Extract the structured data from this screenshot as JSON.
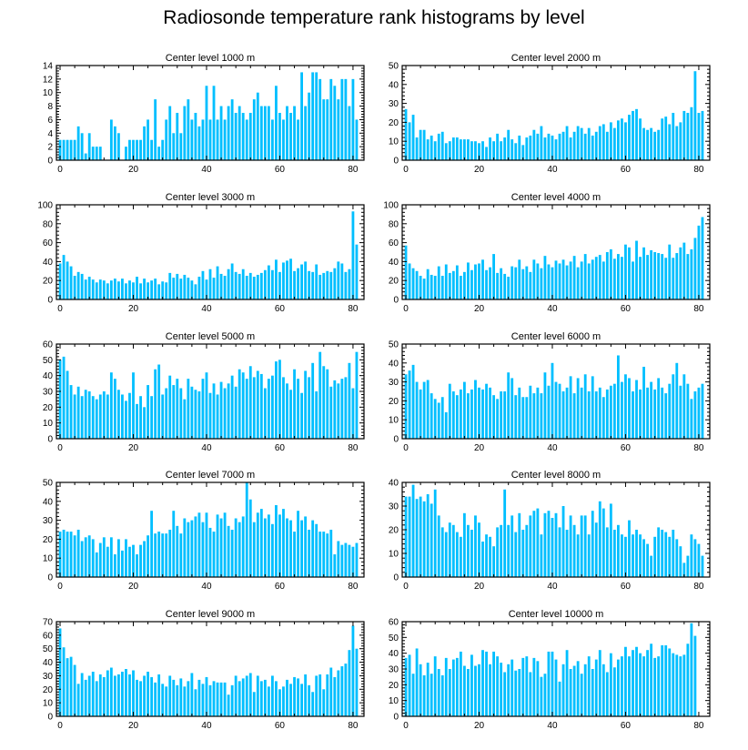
{
  "title": "Radiosonde temperature rank histograms by level",
  "chart_data": [
    {
      "type": "bar",
      "title": "Center level 1000 m",
      "xlim": [
        -1,
        83
      ],
      "ylim": [
        0,
        14
      ],
      "xticks": [
        0,
        20,
        40,
        60,
        80
      ],
      "yticks": [
        0,
        2,
        4,
        6,
        8,
        10,
        12,
        14
      ],
      "values": [
        3,
        3,
        3,
        3,
        3,
        5,
        4,
        1,
        4,
        2,
        2,
        2,
        0,
        0,
        6,
        5,
        4,
        0,
        2,
        3,
        3,
        3,
        3,
        5,
        6,
        3,
        9,
        2,
        3,
        6,
        8,
        4,
        7,
        4,
        8,
        9,
        6,
        7,
        5,
        6,
        11,
        6,
        11,
        6,
        8,
        6,
        8,
        9,
        7,
        8,
        7,
        6,
        7,
        9,
        10,
        8,
        8,
        8,
        6,
        11,
        7,
        6,
        8,
        7,
        8,
        6,
        13,
        8,
        10,
        13,
        13,
        12,
        9,
        9,
        12,
        11,
        9,
        12,
        12,
        8,
        12,
        6
      ]
    },
    {
      "type": "bar",
      "title": "Center level 2000 m",
      "xlim": [
        -1,
        83
      ],
      "ylim": [
        0,
        50
      ],
      "xticks": [
        0,
        20,
        40,
        60,
        80
      ],
      "yticks": [
        0,
        10,
        20,
        30,
        40,
        50
      ],
      "values": [
        27,
        20,
        24,
        12,
        16,
        16,
        11,
        13,
        10,
        14,
        15,
        9,
        10,
        12,
        12,
        11,
        11,
        11,
        10,
        10,
        9,
        10,
        7,
        12,
        10,
        14,
        10,
        12,
        16,
        11,
        9,
        13,
        8,
        12,
        13,
        16,
        14,
        18,
        12,
        14,
        13,
        11,
        14,
        15,
        18,
        12,
        15,
        18,
        17,
        14,
        17,
        13,
        15,
        18,
        19,
        15,
        20,
        17,
        21,
        22,
        20,
        24,
        26,
        27,
        22,
        17,
        16,
        17,
        15,
        16,
        22,
        23,
        19,
        25,
        18,
        20,
        26,
        25,
        28,
        47,
        25,
        26
      ]
    },
    {
      "type": "bar",
      "title": "Center level 3000 m",
      "xlim": [
        -1,
        83
      ],
      "ylim": [
        0,
        100
      ],
      "xticks": [
        0,
        20,
        40,
        60,
        80
      ],
      "yticks": [
        0,
        20,
        40,
        60,
        80,
        100
      ],
      "values": [
        38,
        47,
        40,
        35,
        25,
        29,
        27,
        21,
        24,
        21,
        18,
        21,
        20,
        17,
        20,
        22,
        19,
        22,
        17,
        20,
        18,
        24,
        17,
        22,
        18,
        20,
        22,
        16,
        19,
        18,
        28,
        23,
        27,
        22,
        26,
        23,
        20,
        16,
        24,
        30,
        21,
        32,
        23,
        35,
        27,
        25,
        32,
        38,
        29,
        27,
        32,
        25,
        28,
        24,
        26,
        28,
        31,
        36,
        31,
        42,
        29,
        39,
        41,
        43,
        30,
        33,
        37,
        40,
        30,
        29,
        37,
        26,
        28,
        30,
        29,
        33,
        40,
        38,
        29,
        32,
        93,
        58
      ]
    },
    {
      "type": "bar",
      "title": "Center level 4000 m",
      "xlim": [
        -1,
        83
      ],
      "ylim": [
        0,
        100
      ],
      "xticks": [
        0,
        20,
        40,
        60,
        80
      ],
      "yticks": [
        0,
        20,
        40,
        60,
        80,
        100
      ],
      "values": [
        57,
        38,
        33,
        30,
        25,
        22,
        32,
        26,
        25,
        35,
        25,
        37,
        28,
        30,
        36,
        25,
        29,
        39,
        31,
        37,
        38,
        42,
        31,
        34,
        48,
        28,
        33,
        27,
        24,
        35,
        34,
        42,
        32,
        35,
        29,
        42,
        38,
        33,
        46,
        37,
        34,
        41,
        38,
        42,
        36,
        40,
        46,
        34,
        40,
        48,
        38,
        42,
        45,
        47,
        40,
        50,
        53,
        43,
        48,
        45,
        58,
        55,
        40,
        62,
        45,
        55,
        47,
        52,
        50,
        49,
        48,
        44,
        58,
        44,
        49,
        55,
        60,
        48,
        53,
        65,
        78,
        87
      ]
    },
    {
      "type": "bar",
      "title": "Center level 5000 m",
      "xlim": [
        -1,
        83
      ],
      "ylim": [
        0,
        60
      ],
      "xticks": [
        0,
        20,
        40,
        60,
        80
      ],
      "yticks": [
        0,
        10,
        20,
        30,
        40,
        50,
        60
      ],
      "values": [
        50,
        52,
        43,
        34,
        28,
        33,
        27,
        31,
        30,
        27,
        25,
        28,
        30,
        28,
        42,
        38,
        31,
        28,
        24,
        29,
        42,
        22,
        27,
        20,
        34,
        27,
        44,
        47,
        28,
        32,
        40,
        34,
        38,
        32,
        25,
        38,
        33,
        31,
        30,
        38,
        42,
        29,
        35,
        28,
        36,
        32,
        35,
        40,
        33,
        44,
        42,
        38,
        46,
        39,
        43,
        41,
        32,
        38,
        40,
        49,
        50,
        39,
        35,
        31,
        44,
        38,
        29,
        43,
        39,
        48,
        30,
        55,
        46,
        44,
        33,
        37,
        35,
        38,
        39,
        48,
        32,
        55
      ]
    },
    {
      "type": "bar",
      "title": "Center level 6000 m",
      "xlim": [
        -1,
        83
      ],
      "ylim": [
        0,
        50
      ],
      "xticks": [
        0,
        20,
        40,
        60,
        80
      ],
      "yticks": [
        0,
        10,
        20,
        30,
        40,
        50
      ],
      "values": [
        34,
        36,
        39,
        30,
        26,
        30,
        31,
        24,
        21,
        19,
        22,
        14,
        29,
        25,
        23,
        26,
        30,
        24,
        26,
        31,
        27,
        26,
        29,
        27,
        23,
        21,
        25,
        25,
        35,
        32,
        23,
        27,
        22,
        22,
        28,
        24,
        27,
        24,
        35,
        28,
        40,
        30,
        29,
        25,
        27,
        33,
        24,
        32,
        27,
        34,
        25,
        33,
        25,
        27,
        22,
        26,
        28,
        29,
        44,
        30,
        34,
        32,
        25,
        31,
        26,
        38,
        27,
        30,
        26,
        32,
        27,
        24,
        29,
        34,
        40,
        28,
        34,
        29,
        21,
        25,
        27,
        29
      ]
    },
    {
      "type": "bar",
      "title": "Center level 7000 m",
      "xlim": [
        -1,
        83
      ],
      "ylim": [
        0,
        50
      ],
      "xticks": [
        0,
        20,
        40,
        60,
        80
      ],
      "yticks": [
        0,
        10,
        20,
        30,
        40,
        50
      ],
      "values": [
        24,
        25,
        24,
        24,
        22,
        25,
        19,
        21,
        22,
        20,
        13,
        18,
        21,
        16,
        21,
        12,
        20,
        14,
        20,
        16,
        17,
        12,
        17,
        19,
        22,
        35,
        23,
        24,
        23,
        23,
        25,
        35,
        27,
        23,
        31,
        29,
        30,
        32,
        34,
        29,
        34,
        26,
        24,
        33,
        31,
        34,
        27,
        25,
        31,
        29,
        32,
        50,
        41,
        29,
        34,
        36,
        31,
        33,
        28,
        38,
        33,
        36,
        31,
        30,
        24,
        35,
        30,
        32,
        25,
        30,
        28,
        24,
        24,
        23,
        25,
        12,
        19,
        17,
        18,
        17,
        16,
        18
      ]
    },
    {
      "type": "bar",
      "title": "Center level 8000 m",
      "xlim": [
        -1,
        83
      ],
      "ylim": [
        0,
        40
      ],
      "xticks": [
        0,
        20,
        40,
        60,
        80
      ],
      "yticks": [
        0,
        10,
        20,
        30,
        40
      ],
      "values": [
        34,
        34,
        39,
        33,
        34,
        32,
        35,
        31,
        37,
        26,
        21,
        19,
        23,
        22,
        19,
        17,
        27,
        22,
        20,
        26,
        23,
        15,
        18,
        17,
        13,
        21,
        22,
        37,
        22,
        26,
        19,
        27,
        20,
        22,
        26,
        28,
        29,
        18,
        27,
        28,
        25,
        27,
        21,
        30,
        20,
        26,
        22,
        18,
        26,
        26,
        18,
        28,
        23,
        32,
        29,
        21,
        31,
        20,
        22,
        18,
        17,
        24,
        18,
        20,
        18,
        16,
        14,
        9,
        17,
        21,
        20,
        19,
        17,
        20,
        16,
        13,
        6,
        9,
        18,
        16,
        14,
        9
      ]
    },
    {
      "type": "bar",
      "title": "Center level 9000 m",
      "xlim": [
        -1,
        83
      ],
      "ylim": [
        0,
        70
      ],
      "xticks": [
        0,
        20,
        40,
        60,
        80
      ],
      "yticks": [
        0,
        10,
        20,
        30,
        40,
        50,
        60,
        70
      ],
      "values": [
        65,
        51,
        43,
        44,
        38,
        24,
        32,
        27,
        30,
        33,
        26,
        31,
        29,
        34,
        36,
        30,
        31,
        33,
        35,
        31,
        34,
        27,
        26,
        30,
        33,
        29,
        25,
        31,
        24,
        22,
        30,
        27,
        23,
        28,
        22,
        26,
        32,
        20,
        27,
        24,
        29,
        23,
        26,
        25,
        25,
        25,
        16,
        23,
        30,
        26,
        28,
        30,
        32,
        18,
        30,
        26,
        27,
        22,
        30,
        26,
        20,
        22,
        27,
        24,
        29,
        28,
        24,
        31,
        23,
        18,
        30,
        31,
        20,
        31,
        36,
        29,
        34,
        37,
        39,
        49,
        67,
        50
      ]
    },
    {
      "type": "bar",
      "title": "Center level 10000 m",
      "xlim": [
        -1,
        83
      ],
      "ylim": [
        0,
        60
      ],
      "xticks": [
        0,
        20,
        40,
        60,
        80
      ],
      "yticks": [
        0,
        10,
        20,
        30,
        40,
        50,
        60
      ],
      "values": [
        37,
        39,
        27,
        43,
        33,
        26,
        34,
        27,
        38,
        30,
        26,
        37,
        30,
        36,
        37,
        41,
        32,
        30,
        39,
        32,
        33,
        42,
        41,
        33,
        41,
        38,
        34,
        28,
        33,
        36,
        29,
        30,
        37,
        38,
        28,
        37,
        35,
        25,
        27,
        41,
        41,
        36,
        22,
        33,
        42,
        30,
        32,
        35,
        27,
        33,
        38,
        30,
        36,
        42,
        33,
        28,
        40,
        31,
        36,
        38,
        44,
        38,
        42,
        44,
        40,
        38,
        42,
        46,
        37,
        38,
        45,
        45,
        43,
        40,
        39,
        38,
        39,
        46,
        59,
        51
      ]
    }
  ]
}
